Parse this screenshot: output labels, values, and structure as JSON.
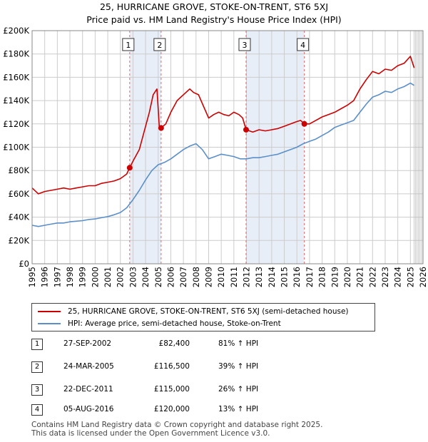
{
  "title_line1": "25, HURRICANE GROVE, STOKE-ON-TRENT, ST6 5XJ",
  "title_line2": "Price paid vs. HM Land Registry's House Price Index (HPI)",
  "colors": {
    "property": "#cc0000",
    "hpi": "#5b8fc9",
    "shade": "#e8eef8",
    "grid": "#cccccc",
    "vline": "#e06666"
  },
  "legend": {
    "property_label": "25, HURRICANE GROVE, STOKE-ON-TRENT, ST6 5XJ (semi-detached house)",
    "hpi_label": "HPI: Average price, semi-detached house, Stoke-on-Trent"
  },
  "transactions": [
    {
      "num": "1",
      "date": "27-SEP-2002",
      "price": "£82,400",
      "hpi_change": "81% ↑ HPI"
    },
    {
      "num": "2",
      "date": "24-MAR-2005",
      "price": "£116,500",
      "hpi_change": "39% ↑ HPI"
    },
    {
      "num": "3",
      "date": "22-DEC-2011",
      "price": "£115,000",
      "hpi_change": "26% ↑ HPI"
    },
    {
      "num": "4",
      "date": "05-AUG-2016",
      "price": "£120,000",
      "hpi_change": "13% ↑ HPI"
    }
  ],
  "footer": {
    "line1": "Contains HM Land Registry data © Crown copyright and database right 2025.",
    "line2": "This data is licensed under the Open Government Licence v3.0."
  },
  "chart_data": {
    "type": "line",
    "title": "Price paid vs. HM Land Registry's House Price Index (HPI)",
    "xlabel": "",
    "ylabel": "",
    "xlim": [
      1995,
      2026
    ],
    "ylim": [
      0,
      200000
    ],
    "y_ticks": [
      0,
      20000,
      40000,
      60000,
      80000,
      100000,
      120000,
      140000,
      160000,
      180000,
      200000
    ],
    "y_tick_labels": [
      "£0",
      "£20K",
      "£40K",
      "£60K",
      "£80K",
      "£100K",
      "£120K",
      "£140K",
      "£160K",
      "£180K",
      "£200K"
    ],
    "x_ticks": [
      1995,
      1996,
      1997,
      1998,
      1999,
      2000,
      2001,
      2002,
      2003,
      2004,
      2005,
      2006,
      2007,
      2008,
      2009,
      2010,
      2011,
      2012,
      2013,
      2014,
      2015,
      2016,
      2017,
      2018,
      2019,
      2020,
      2021,
      2022,
      2023,
      2024,
      2025,
      2026
    ],
    "grid": true,
    "shaded_ranges": [
      [
        2002.74,
        2005.23
      ],
      [
        2011.97,
        2016.59
      ]
    ],
    "forecast_start": 2025.3,
    "markers": [
      {
        "label": "1",
        "x": 2002.74,
        "y": 82400
      },
      {
        "label": "2",
        "x": 2005.23,
        "y": 116500
      },
      {
        "label": "3",
        "x": 2011.97,
        "y": 115000
      },
      {
        "label": "4",
        "x": 2016.59,
        "y": 120000
      }
    ],
    "series": [
      {
        "name": "25, HURRICANE GROVE, STOKE-ON-TRENT, ST6 5XJ (semi-detached house)",
        "x": [
          1995,
          1995.5,
          1996,
          1996.5,
          1997,
          1997.5,
          1998,
          1998.5,
          1999,
          1999.5,
          2000,
          2000.5,
          2001,
          2001.5,
          2002,
          2002.5,
          2002.74,
          2003,
          2003.5,
          2004,
          2004.3,
          2004.6,
          2004.9,
          2005.1,
          2005.23,
          2005.6,
          2006,
          2006.5,
          2007,
          2007.5,
          2007.8,
          2008.2,
          2008.6,
          2009,
          2009.4,
          2009.8,
          2010.2,
          2010.6,
          2011,
          2011.4,
          2011.7,
          2011.97,
          2012.5,
          2013,
          2013.5,
          2014,
          2014.5,
          2015,
          2015.5,
          2016,
          2016.3,
          2016.59,
          2017,
          2017.5,
          2018,
          2018.5,
          2019,
          2019.5,
          2020,
          2020.5,
          2021,
          2021.5,
          2022,
          2022.5,
          2023,
          2023.5,
          2024,
          2024.5,
          2025,
          2025.3
        ],
        "y": [
          65000,
          60000,
          62000,
          63000,
          64000,
          65000,
          64000,
          65000,
          66000,
          67000,
          67000,
          69000,
          70000,
          71000,
          73000,
          77000,
          82400,
          88000,
          98000,
          118000,
          130000,
          145000,
          150000,
          116000,
          116500,
          120000,
          130000,
          140000,
          145000,
          150000,
          147000,
          145000,
          135000,
          125000,
          128000,
          130000,
          128000,
          127000,
          130000,
          128000,
          125000,
          115000,
          113000,
          115000,
          114000,
          115000,
          116000,
          118000,
          120000,
          122000,
          123000,
          120000,
          120000,
          123000,
          126000,
          128000,
          130000,
          133000,
          136000,
          140000,
          150000,
          158000,
          165000,
          163000,
          167000,
          166000,
          170000,
          172000,
          178000,
          168000
        ]
      },
      {
        "name": "HPI: Average price, semi-detached house, Stoke-on-Trent",
        "x": [
          1995,
          1995.5,
          1996,
          1996.5,
          1997,
          1997.5,
          1998,
          1998.5,
          1999,
          1999.5,
          2000,
          2000.5,
          2001,
          2001.5,
          2002,
          2002.5,
          2003,
          2003.5,
          2004,
          2004.5,
          2005,
          2005.5,
          2006,
          2006.5,
          2007,
          2007.5,
          2008,
          2008.5,
          2009,
          2009.5,
          2010,
          2010.5,
          2011,
          2011.5,
          2012,
          2012.5,
          2013,
          2013.5,
          2014,
          2014.5,
          2015,
          2015.5,
          2016,
          2016.5,
          2017,
          2017.5,
          2018,
          2018.5,
          2019,
          2019.5,
          2020,
          2020.5,
          2021,
          2021.5,
          2022,
          2022.5,
          2023,
          2023.5,
          2024,
          2024.5,
          2025,
          2025.3
        ],
        "y": [
          33000,
          32000,
          33000,
          34000,
          35000,
          35000,
          36000,
          36500,
          37000,
          38000,
          38500,
          39500,
          40500,
          42000,
          44000,
          48000,
          55000,
          63000,
          72000,
          80000,
          85000,
          87000,
          90000,
          94000,
          98000,
          101000,
          103000,
          98000,
          90000,
          92000,
          94000,
          93000,
          92000,
          90000,
          90000,
          91000,
          91000,
          92000,
          93000,
          94000,
          96000,
          98000,
          100000,
          103000,
          105000,
          107000,
          110000,
          113000,
          117000,
          119000,
          121000,
          123000,
          130000,
          137000,
          143000,
          145000,
          148000,
          147000,
          150000,
          152000,
          155000,
          153000
        ]
      }
    ]
  }
}
